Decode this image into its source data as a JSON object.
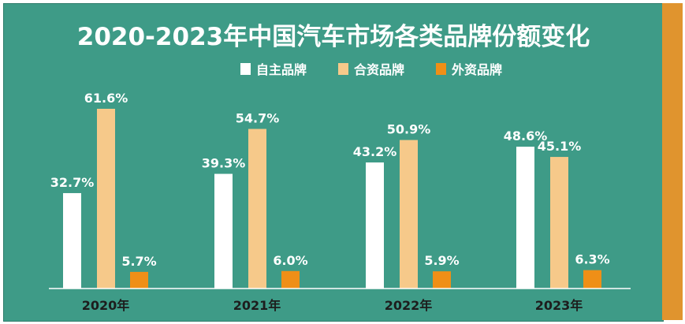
{
  "colors": {
    "background": "#3e9b87",
    "stripe": "#e0942e",
    "domestic": "#ffffff",
    "joint_venture": "#f6c98a",
    "foreign": "#ef8f17"
  },
  "chart_data": {
    "type": "bar",
    "title": "2020-2023年中国汽车市场各类品牌份额变化",
    "categories": [
      "2020年",
      "2021年",
      "2022年",
      "2023年"
    ],
    "series": [
      {
        "name": "自主品牌",
        "values": [
          32.7,
          39.3,
          43.2,
          48.6
        ],
        "labels": [
          "32.7%",
          "39.3%",
          "43.2%",
          "48.6%"
        ],
        "color": "#ffffff"
      },
      {
        "name": "合资品牌",
        "values": [
          61.6,
          54.7,
          50.9,
          45.1
        ],
        "labels": [
          "61.6%",
          "54.7%",
          "50.9%",
          "45.1%"
        ],
        "color": "#f6c98a"
      },
      {
        "name": "外资品牌",
        "values": [
          5.7,
          6.0,
          5.9,
          6.3
        ],
        "labels": [
          "5.7%",
          "6.0%",
          "5.9%",
          "6.3%"
        ],
        "color": "#ef8f17"
      }
    ],
    "unit": "%",
    "legend_position": "top-center",
    "grid": false,
    "ylim": [
      0,
      65
    ]
  }
}
